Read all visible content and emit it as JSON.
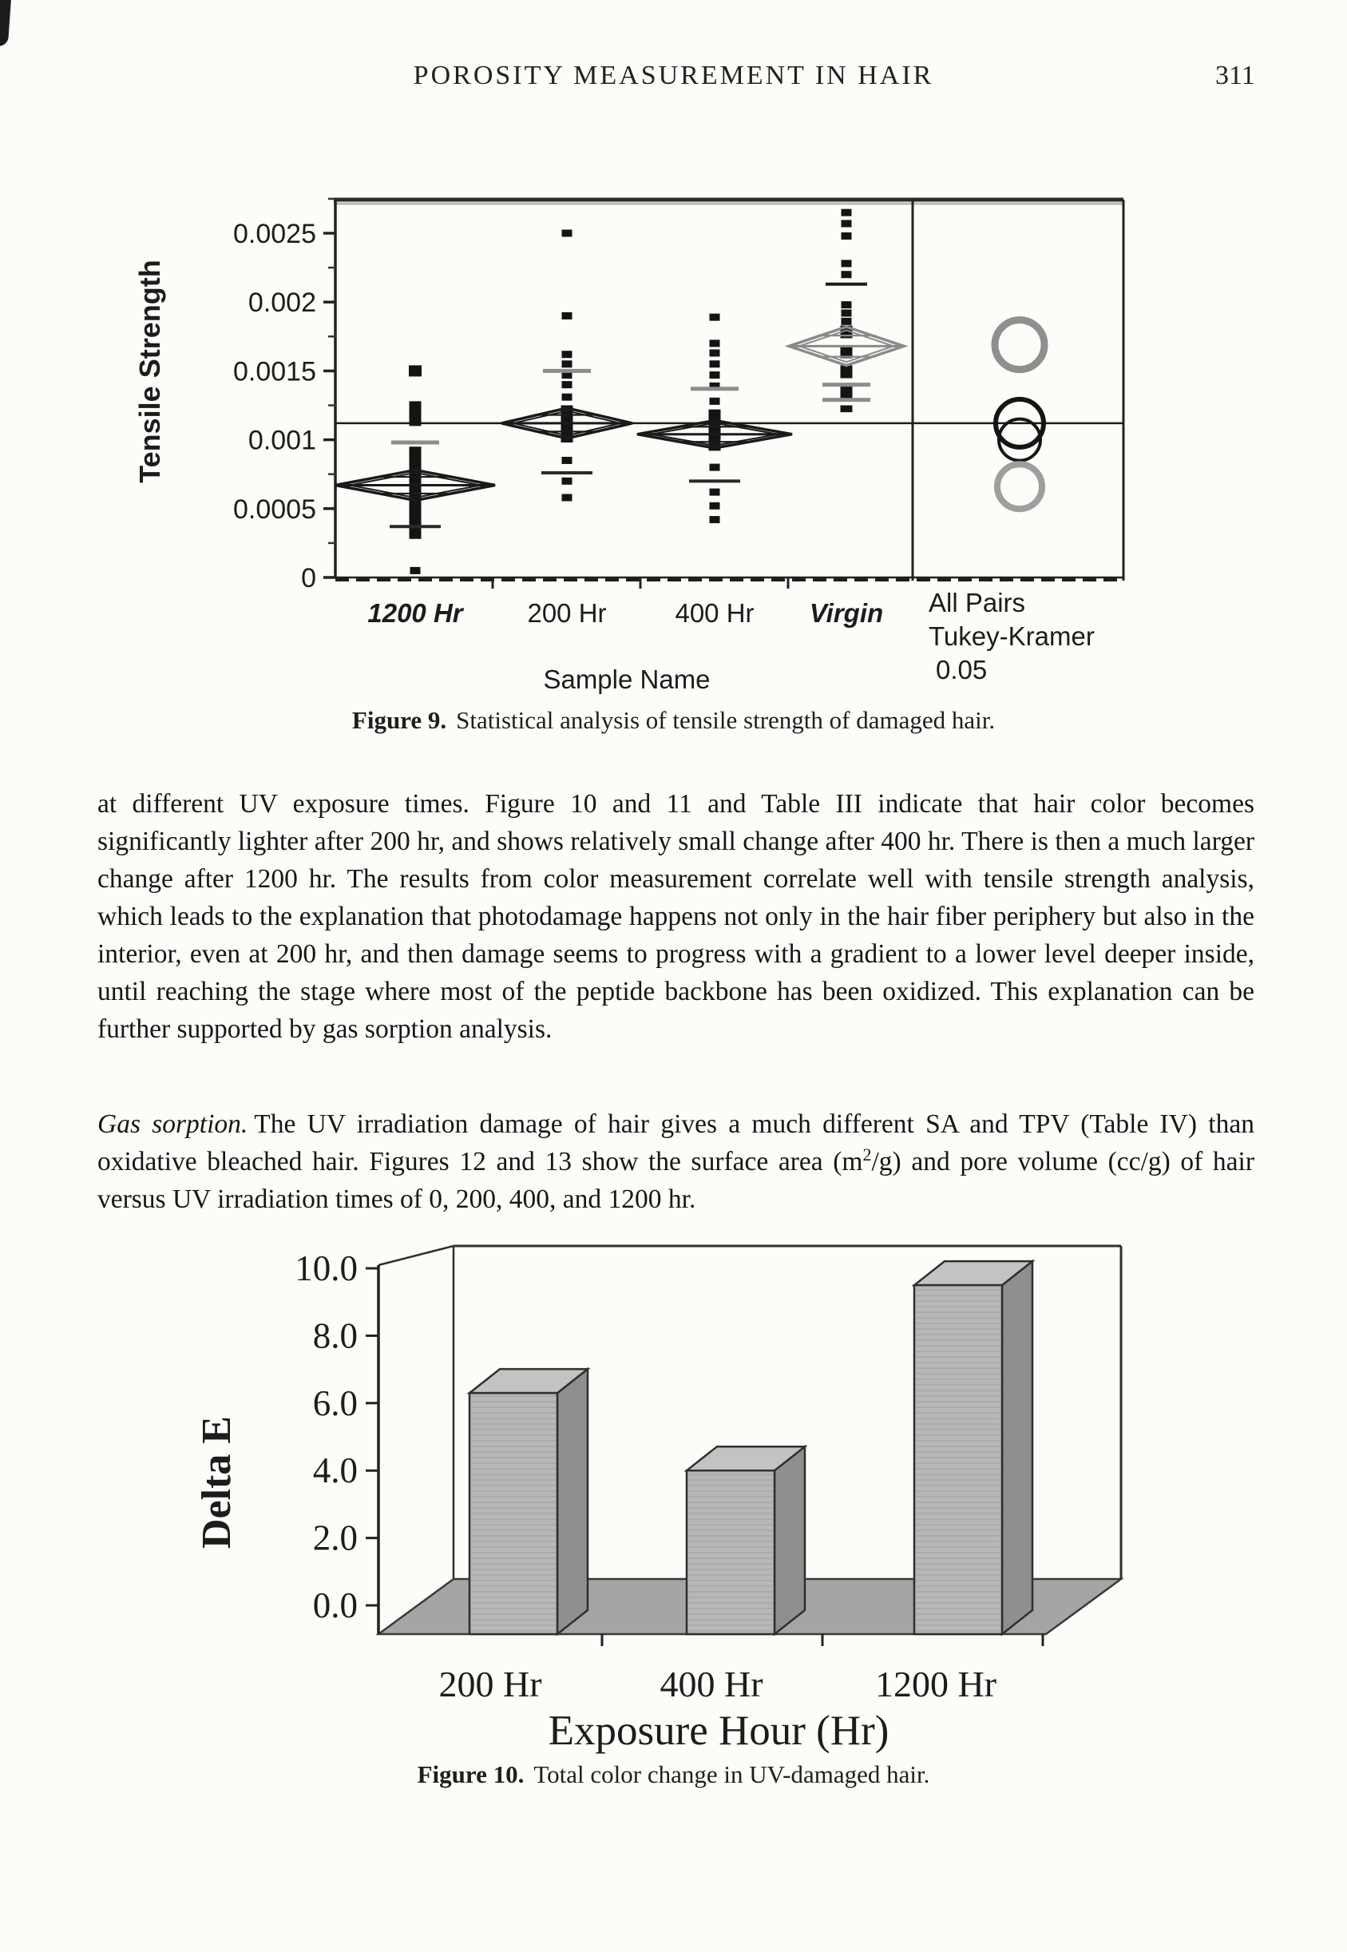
{
  "page": {
    "header": "POROSITY MEASUREMENT IN HAIR",
    "page_number": "311"
  },
  "figure9_caption": {
    "label": "Figure 9.",
    "text": "Statistical analysis of tensile strength of damaged hair."
  },
  "figure10_caption": {
    "label": "Figure 10.",
    "text": "Total color change in UV-damaged hair."
  },
  "paragraph1": "at different UV exposure times. Figure 10 and 11 and Table III indicate that hair color becomes significantly lighter after 200 hr, and shows relatively small change after 400 hr. There is then a much larger change after 1200 hr. The results from color measurement correlate well with tensile strength analysis, which leads to the explanation that photodamage happens not only in the hair fiber periphery but also in the interior, even at 200 hr, and then damage seems to progress with a gradient to a lower level deeper inside, until reaching the stage where most of the peptide backbone has been oxidized. This explanation can be further supported by gas sorption analysis.",
  "paragraph2": {
    "lead_italic": "Gas sorption.",
    "before_sup": "The UV irradiation damage of hair gives a much different SA and TPV (Table IV) than oxidative bleached hair. Figures 12 and 13 show the surface area (m",
    "sup": "2",
    "after_sup": "/g) and pore volume (cc/g) of hair versus UV irradiation times of 0, 200, 400, and 1200 hr."
  },
  "chart_data": [
    {
      "id": "figure9",
      "type": "scatter",
      "title": "Figure 9. Statistical analysis of tensile strength of damaged hair.",
      "ylabel": "Tensile Strength",
      "xlabel": "Sample Name",
      "ylim": [
        0,
        0.00275
      ],
      "yticks": [
        0,
        0.0005,
        0.001,
        0.0015,
        0.002,
        0.0025
      ],
      "ytick_labels": [
        "0",
        "0.0005",
        "0.001",
        "0.0015",
        "0.002",
        "0.0025"
      ],
      "categories": [
        "1200 Hr",
        "200 Hr",
        "400 Hr",
        "Virgin"
      ],
      "category_italic": [
        true,
        false,
        false,
        true
      ],
      "grand_mean": 0.00112,
      "grid": false,
      "legend_position": "right-bottom",
      "legend_lines": [
        "All Pairs",
        "Tukey-Kramer",
        "0.05"
      ],
      "groups": [
        {
          "name": "1200 Hr",
          "mean": 0.00067,
          "ci_half": 0.00011,
          "diamond_halfwidth": 100,
          "diamond_color": "#1a1a1a",
          "squares": [
            0.0015
          ],
          "points": [
            5e-05
          ],
          "segments": [
            [
              0.0011,
              0.00128,
              1
            ],
            [
              0.00028,
              0.00095,
              1
            ]
          ],
          "gray_ticks": [
            0.00098
          ],
          "black_ticks": [],
          "cross_ticks": [
            0.00037
          ]
        },
        {
          "name": "200 Hr",
          "mean": 0.00112,
          "ci_half": 0.00011,
          "diamond_halfwidth": 82,
          "diamond_color": "#1a1a1a",
          "squares": [],
          "points": [
            0.0025,
            0.0019,
            0.00162,
            0.00155,
            0.00147,
            0.0014,
            0.00131,
            0.00085,
            0.0007,
            0.00058
          ],
          "segments": [
            [
              0.00098,
              0.00125,
              1
            ]
          ],
          "gray_ticks": [
            0.0015
          ],
          "black_ticks": [],
          "cross_ticks": [
            0.00076
          ]
        },
        {
          "name": "400 Hr",
          "mean": 0.00104,
          "ci_half": 0.0001,
          "diamond_halfwidth": 97,
          "diamond_color": "#1a1a1a",
          "squares": [],
          "points": [
            0.00189,
            0.0017,
            0.00163,
            0.00155,
            0.00147,
            0.00139,
            0.00128,
            0.0008,
            0.00062,
            0.00052,
            0.00042
          ],
          "segments": [
            [
              0.00092,
              0.00122,
              1
            ]
          ],
          "gray_ticks": [
            0.00137
          ],
          "black_ticks": [],
          "cross_ticks": [
            0.0007
          ]
        },
        {
          "name": "Virgin",
          "mean": 0.00168,
          "ci_half": 0.00014,
          "diamond_halfwidth": 72,
          "diamond_color": "#8a8a8a",
          "squares": [],
          "points": [
            0.00265,
            0.00257,
            0.00248,
            0.00228,
            0.0022,
            0.00198,
            0.00192,
            0.00186
          ],
          "segments": [
            [
              0.0012,
              0.00183,
              0
            ]
          ],
          "gray_ticks": [
            0.0014,
            0.00129
          ],
          "black_ticks": [
            0.00213
          ],
          "cross_ticks": []
        }
      ],
      "comparison_circles": [
        {
          "value": 0.00169,
          "radius_px": 31,
          "color": "#8f8f8f",
          "width": 9
        },
        {
          "value": 0.00112,
          "radius_px": 30,
          "color": "#151515",
          "width": 6
        },
        {
          "value": 0.001,
          "radius_px": 26,
          "color": "#151515",
          "width": 4
        },
        {
          "value": 0.00066,
          "radius_px": 28,
          "color": "#9e9e9e",
          "width": 8
        }
      ]
    },
    {
      "id": "figure10",
      "type": "bar",
      "style": "3d",
      "title": "Figure 10. Total color change in UV-damaged hair.",
      "xlabel": "Exposure Hour (Hr)",
      "ylabel": "Delta E",
      "categories": [
        "200 Hr",
        "400 Hr",
        "1200 Hr"
      ],
      "values": [
        6.3,
        4.0,
        9.5
      ],
      "ylim": [
        0,
        10
      ],
      "yticks": [
        0,
        2,
        4,
        6,
        8,
        10
      ],
      "ytick_labels": [
        "0.0",
        "2.0",
        "4.0",
        "6.0",
        "8.0",
        "10.0"
      ],
      "grid": false,
      "legend_position": "none"
    }
  ]
}
